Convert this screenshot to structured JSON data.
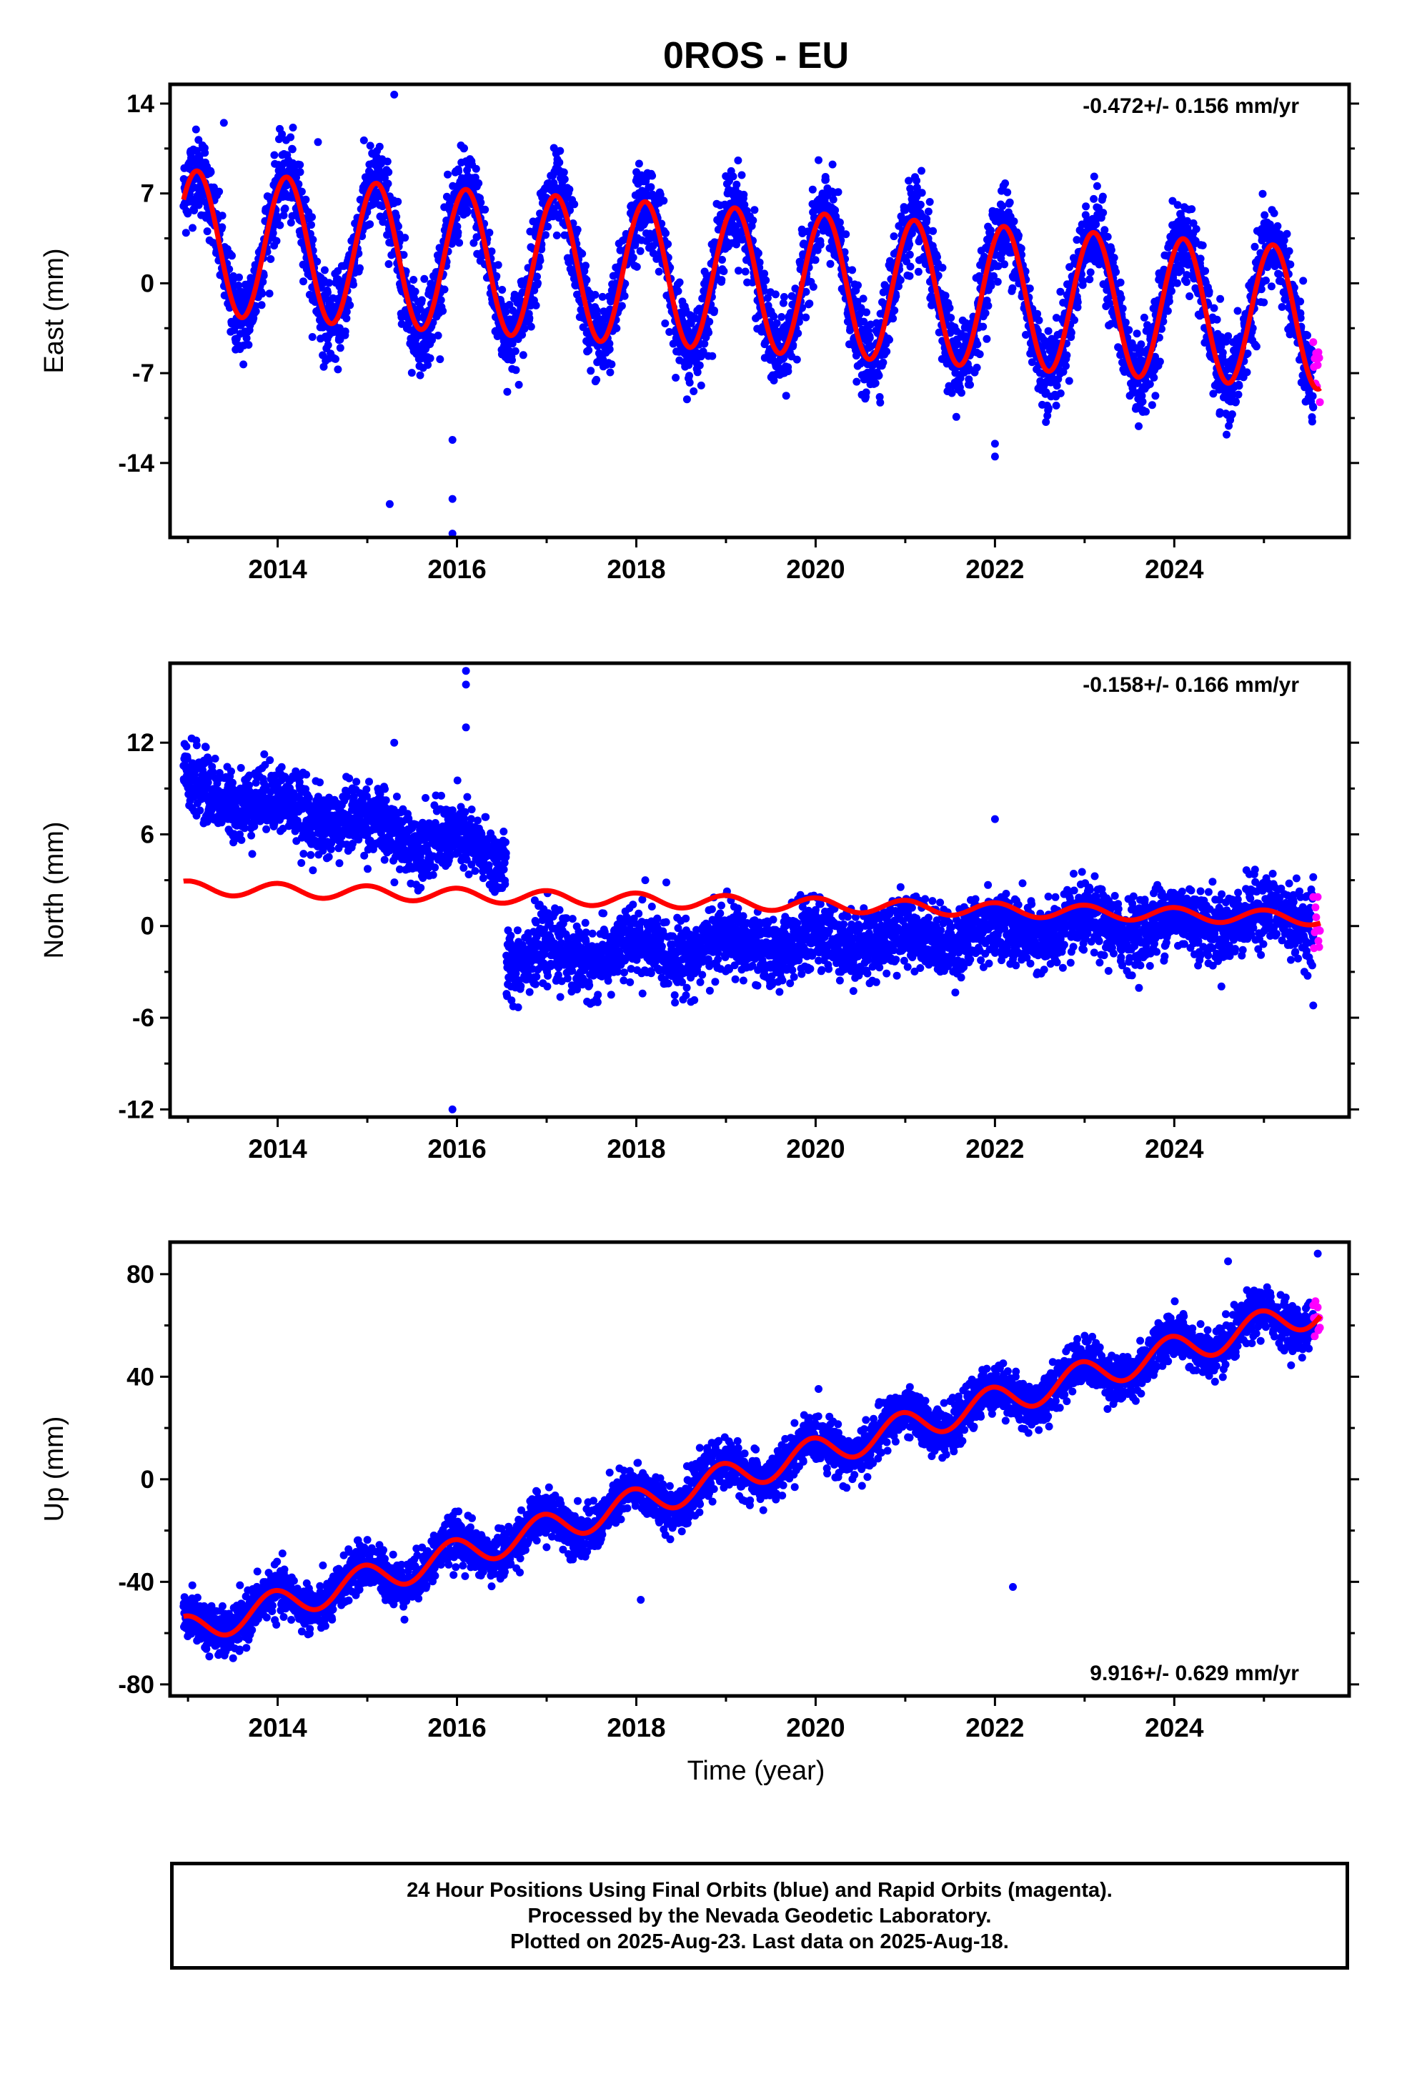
{
  "title": "0ROS - EU",
  "colors": {
    "final_orbits": "#0000ff",
    "rapid_orbits": "#ff00ff",
    "model": "#ff0000",
    "frame": "#000000"
  },
  "xlabel": "Time (year)",
  "footer": {
    "line1": "24 Hour Positions Using Final Orbits (blue) and Rapid Orbits (magenta).",
    "line2": "Processed by the Nevada Geodetic Laboratory.",
    "line3": "Plotted on 2025-Aug-23. Last data on 2025-Aug-18."
  },
  "chart_data": [
    {
      "type": "scatter",
      "component": "east",
      "ylabel": "East (mm)",
      "rate_text": "-0.472+/- 0.156 mm/yr",
      "xlim": [
        2012.8,
        2025.95
      ],
      "ylim": [
        -19.8,
        15.5
      ],
      "xticks": [
        2014,
        2016,
        2018,
        2020,
        2022,
        2024
      ],
      "xtick_labels": [
        "2014",
        "2016",
        "2018",
        "2020",
        "2022",
        "2024"
      ],
      "yticks": [
        14,
        7,
        0,
        -7,
        -14
      ],
      "ytick_labels": [
        "14",
        "7",
        "0",
        "-7",
        "-14"
      ],
      "start": 2012.95,
      "end_final": 2025.55,
      "end_rapid": 2025.63,
      "model": {
        "offset": 3.2,
        "rate": -0.472,
        "amp_start": 5.6,
        "amp_end": 5.5,
        "phase": 0.1,
        "x0": 2013.0
      },
      "scatter_sigma": 1.6,
      "jumps": [],
      "outliers": [
        [
          2015.3,
          14.7
        ],
        [
          2015.25,
          -17.2
        ],
        [
          2015.95,
          -16.8
        ],
        [
          2015.95,
          -19.5
        ],
        [
          2015.95,
          -12.2
        ],
        [
          2022.0,
          -13.5
        ],
        [
          2022.0,
          -12.5
        ],
        [
          2013.4,
          12.5
        ],
        [
          2014.45,
          11.0
        ]
      ],
      "series": [
        {
          "name": "Final Orbits"
        },
        {
          "name": "Rapid Orbits"
        },
        {
          "name": "Model"
        }
      ]
    },
    {
      "type": "scatter",
      "component": "north",
      "ylabel": "North (mm)",
      "rate_text": "-0.158+/- 0.166 mm/yr",
      "xlim": [
        2012.8,
        2025.95
      ],
      "ylim": [
        -12.5,
        17.2
      ],
      "xticks": [
        2014,
        2016,
        2018,
        2020,
        2022,
        2024
      ],
      "xtick_labels": [
        "2014",
        "2016",
        "2018",
        "2020",
        "2022",
        "2024"
      ],
      "yticks": [
        12,
        6,
        0,
        -6,
        -12
      ],
      "ytick_labels": [
        "12",
        "6",
        "0",
        "-6",
        "-12"
      ],
      "start": 2012.95,
      "end_final": 2025.55,
      "end_rapid": 2025.63,
      "model": {
        "offset": 2.5,
        "rate": -0.158,
        "amp_start": 0.45,
        "amp_end": 0.45,
        "phase": 0.0,
        "x0": 2013.0
      },
      "scatter_sigma": 1.1,
      "jumps": [
        {
          "from": 2012.95,
          "to": 2016.55,
          "start_value": 9.2,
          "end_value": 4.6
        },
        {
          "from": 2016.55,
          "to": 2025.63,
          "start_value": -2.1,
          "end_value": 0.7
        }
      ],
      "outliers": [
        [
          2016.1,
          16.7
        ],
        [
          2016.1,
          15.8
        ],
        [
          2016.1,
          13.0
        ],
        [
          2015.3,
          12.0
        ],
        [
          2015.95,
          -12.0
        ],
        [
          2022.0,
          7.0
        ],
        [
          2018.1,
          3.0
        ],
        [
          2025.55,
          -5.2
        ],
        [
          2025.55,
          3.2
        ]
      ],
      "series": [
        {
          "name": "Final Orbits"
        },
        {
          "name": "Rapid Orbits"
        },
        {
          "name": "Model"
        }
      ]
    },
    {
      "type": "scatter",
      "component": "up",
      "ylabel": "Up (mm)",
      "rate_text": "9.916+/- 0.629 mm/yr",
      "xlim": [
        2012.8,
        2025.95
      ],
      "ylim": [
        -84.5,
        92.5
      ],
      "xticks": [
        2014,
        2016,
        2018,
        2020,
        2022,
        2024
      ],
      "xtick_labels": [
        "2014",
        "2016",
        "2018",
        "2020",
        "2022",
        "2024"
      ],
      "yticks": [
        80,
        40,
        0,
        -40,
        -80
      ],
      "ytick_labels": [
        "80",
        "40",
        "0",
        "-40",
        "-80"
      ],
      "start": 2012.95,
      "end_final": 2025.55,
      "end_rapid": 2025.63,
      "model": {
        "offset": -59.0,
        "rate": 9.916,
        "amp_start": 6.0,
        "amp_end": 6.0,
        "phase": -0.05,
        "x0": 2013.0
      },
      "scatter_sigma": 4.5,
      "jumps": [],
      "outliers": [
        [
          2022.2,
          -42.0
        ],
        [
          2018.05,
          -47.0
        ],
        [
          2024.6,
          85.0
        ],
        [
          2025.6,
          88.0
        ]
      ],
      "series": [
        {
          "name": "Final Orbits"
        },
        {
          "name": "Rapid Orbits"
        },
        {
          "name": "Model"
        }
      ]
    }
  ]
}
